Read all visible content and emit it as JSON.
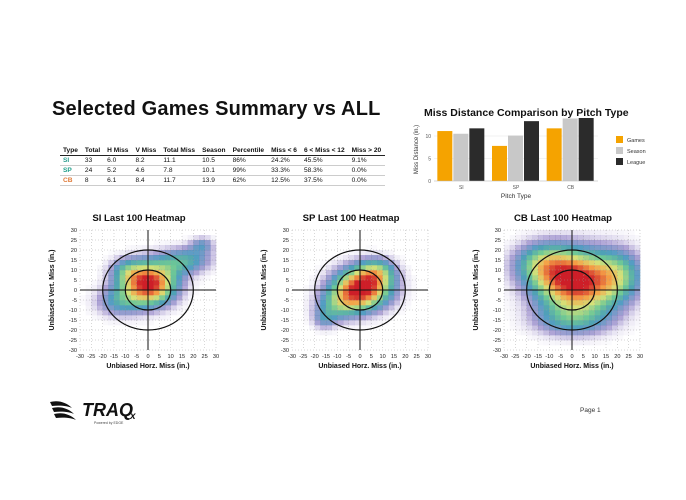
{
  "title": "Selected Games Summary vs ALL",
  "table": {
    "headers": [
      "Type",
      "Total",
      "H Miss",
      "V Miss",
      "Total Miss",
      "Season",
      "Percentile",
      "Miss < 6",
      "6 < Miss < 12",
      "Miss > 20"
    ],
    "rows": [
      {
        "type": "SI",
        "color": "#2a9d8f",
        "cells": [
          "33",
          "6.0",
          "8.2",
          "11.1",
          "10.5",
          "86%",
          "24.2%",
          "45.5%",
          "9.1%"
        ]
      },
      {
        "type": "SP",
        "color": "#1f9e89",
        "cells": [
          "24",
          "5.2",
          "4.6",
          "7.8",
          "10.1",
          "99%",
          "33.3%",
          "58.3%",
          "0.0%"
        ]
      },
      {
        "type": "CB",
        "color": "#e07b39",
        "cells": [
          "8",
          "6.1",
          "8.4",
          "11.7",
          "13.9",
          "62%",
          "12.5%",
          "37.5%",
          "0.0%"
        ]
      }
    ]
  },
  "chart_data": [
    {
      "type": "bar",
      "title": "Miss Distance Comparison by Pitch Type",
      "xlabel": "Pitch Type",
      "ylabel": "Miss Distance (in.)",
      "categories": [
        "SI",
        "SP",
        "CB"
      ],
      "yticks": [
        "0",
        "5",
        "10"
      ],
      "ylim": [
        0,
        14
      ],
      "series": [
        {
          "name": "Games",
          "color": "#f5a300",
          "values": [
            11.1,
            7.8,
            11.7
          ]
        },
        {
          "name": "Season",
          "color": "#c8c8c8",
          "values": [
            10.5,
            10.1,
            13.9
          ]
        },
        {
          "name": "League",
          "color": "#2b2b2b",
          "values": [
            11.7,
            13.3,
            14.0
          ]
        }
      ],
      "legend": "right"
    },
    {
      "type": "heatmap",
      "title": "SI Last 100 Heatmap",
      "xlabel": "Unbiased Horz. Miss (in.)",
      "ylabel": "Unbiased Vert. Miss (in.)",
      "xlim": [
        -30,
        30
      ],
      "ylim": [
        -30,
        30
      ],
      "ticks": [
        -30,
        -25,
        -20,
        -15,
        -10,
        -5,
        0,
        5,
        10,
        15,
        20,
        25,
        30
      ],
      "rings": [
        10,
        20
      ],
      "blobs": [
        {
          "x": 1,
          "y": 3,
          "sx": 9,
          "sy": 8,
          "w": 1.0
        },
        {
          "x": 17,
          "y": 15,
          "sx": 9,
          "sy": 5,
          "w": 0.45
        },
        {
          "x": 24,
          "y": 23,
          "sx": 4,
          "sy": 3,
          "w": 0.3
        },
        {
          "x": -14,
          "y": -6,
          "sx": 8,
          "sy": 6,
          "w": 0.35
        },
        {
          "x": -10,
          "y": 10,
          "sx": 6,
          "sy": 5,
          "w": 0.3
        }
      ]
    },
    {
      "type": "heatmap",
      "title": "SP Last 100 Heatmap",
      "xlabel": "Unbiased Horz. Miss (in.)",
      "ylabel": "Unbiased Vert. Miss (in.)",
      "xlim": [
        -30,
        30
      ],
      "ylim": [
        -30,
        30
      ],
      "ticks": [
        -30,
        -25,
        -20,
        -15,
        -10,
        -5,
        0,
        5,
        10,
        15,
        20,
        25,
        30
      ],
      "rings": [
        10,
        20
      ],
      "blobs": [
        {
          "x": 1,
          "y": 1,
          "sx": 10,
          "sy": 8,
          "w": 1.0
        },
        {
          "x": -10,
          "y": -8,
          "sx": 8,
          "sy": 6,
          "w": 0.35
        },
        {
          "x": -16,
          "y": -15,
          "sx": 4,
          "sy": 4,
          "w": 0.25
        },
        {
          "x": 8,
          "y": 10,
          "sx": 6,
          "sy": 5,
          "w": 0.35
        }
      ]
    },
    {
      "type": "heatmap",
      "title": "CB Last 100 Heatmap",
      "xlabel": "Unbiased Horz. Miss (in.)",
      "ylabel": "Unbiased Vert. Miss (in.)",
      "xlim": [
        -30,
        30
      ],
      "ylim": [
        -30,
        30
      ],
      "ticks": [
        -30,
        -25,
        -20,
        -15,
        -10,
        -5,
        0,
        5,
        10,
        15,
        20,
        25,
        30
      ],
      "rings": [
        10,
        20
      ],
      "blobs": [
        {
          "x": 2,
          "y": 4,
          "sx": 14,
          "sy": 12,
          "w": 1.0
        },
        {
          "x": -14,
          "y": 14,
          "sx": 10,
          "sy": 8,
          "w": 0.4
        },
        {
          "x": 22,
          "y": 8,
          "sx": 8,
          "sy": 10,
          "w": 0.35
        },
        {
          "x": 0,
          "y": -16,
          "sx": 14,
          "sy": 6,
          "w": 0.3
        }
      ]
    }
  ],
  "logo": {
    "name": "TRAQ",
    "sub": "x",
    "tagline": "Powered by EDGE"
  },
  "footer": {
    "page": "Page 1"
  }
}
